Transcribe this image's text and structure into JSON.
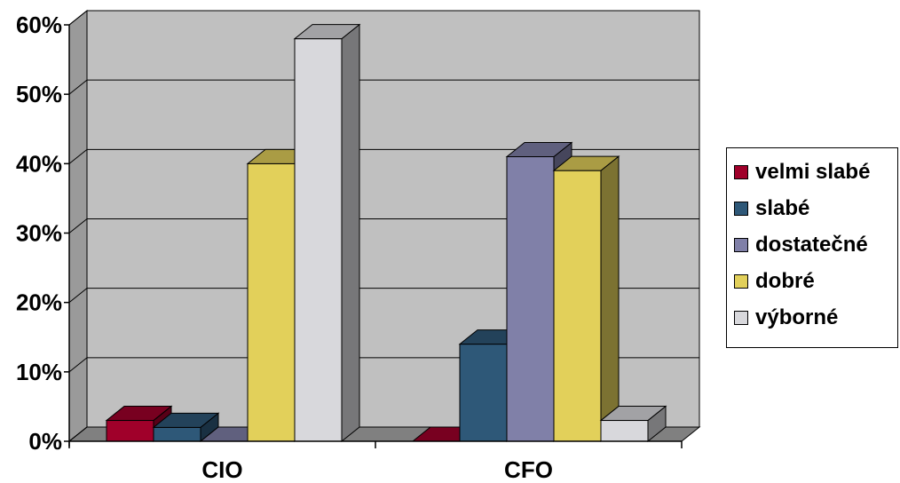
{
  "chart_data": {
    "type": "bar",
    "categories": [
      "CIO",
      "CFO"
    ],
    "series": [
      {
        "name": "velmi slabé",
        "values": [
          3,
          0
        ],
        "color": "#A0002A"
      },
      {
        "name": "slabé",
        "values": [
          2,
          14
        ],
        "color": "#2E5878"
      },
      {
        "name": "dostatečné",
        "values": [
          0,
          41
        ],
        "color": "#8080A8"
      },
      {
        "name": "dobré",
        "values": [
          40,
          39
        ],
        "color": "#E2D05A"
      },
      {
        "name": "výborné",
        "values": [
          58,
          3
        ],
        "color": "#D8D8DC"
      }
    ],
    "y_ticks": [
      "0%",
      "10%",
      "20%",
      "30%",
      "40%",
      "50%",
      "60%"
    ],
    "ylim": [
      0,
      60
    ],
    "y_unit": "%",
    "grid": true,
    "legend": "right",
    "three_d": true,
    "wall_color": "#C0C0C0",
    "floor_color": "#808080"
  }
}
